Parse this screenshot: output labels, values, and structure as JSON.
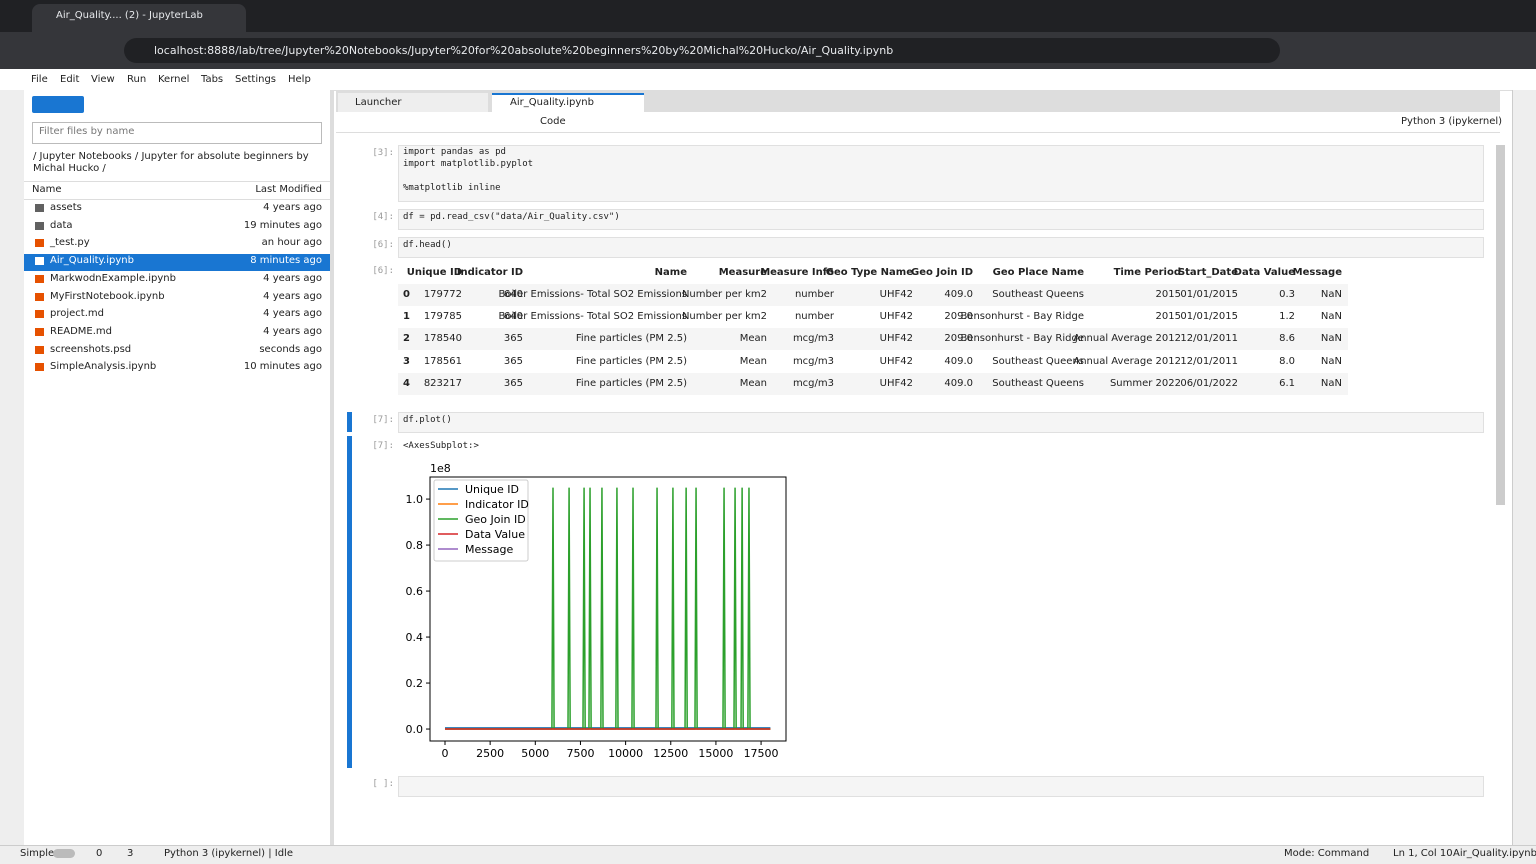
{
  "browser": {
    "tab_title": "Air_Quality.... (2) - JupyterLab",
    "url": "localhost:8888/lab/tree/Jupyter%20Notebooks/Jupyter%20for%20absolute%20beginners%20by%20Michal%20Hucko/Air_Quality.ipynb"
  },
  "menu": [
    "File",
    "Edit",
    "View",
    "Run",
    "Kernel",
    "Tabs",
    "Settings",
    "Help"
  ],
  "file_browser": {
    "filter_placeholder": "Filter files by name",
    "breadcrumb": "/ Jupyter Notebooks / Jupyter for absolute beginners by Michal Hucko /",
    "columns": [
      "Name",
      "Last Modified"
    ],
    "files": [
      {
        "name": "assets",
        "modified": "4 years ago"
      },
      {
        "name": "data",
        "modified": "19 minutes ago"
      },
      {
        "name": "_test.py",
        "modified": "an hour ago"
      },
      {
        "name": "Air_Quality.ipynb",
        "modified": "8 minutes ago"
      },
      {
        "name": "MarkwodnExample.ipynb",
        "modified": "4 years ago"
      },
      {
        "name": "MyFirstNotebook.ipynb",
        "modified": "4 years ago"
      },
      {
        "name": "project.md",
        "modified": "4 years ago"
      },
      {
        "name": "README.md",
        "modified": "4 years ago"
      },
      {
        "name": "screenshots.psd",
        "modified": "seconds ago"
      },
      {
        "name": "SimpleAnalysis.ipynb",
        "modified": "10 minutes ago"
      }
    ]
  },
  "tabs": [
    "Launcher",
    "Air_Quality.ipynb"
  ],
  "toolbar": {
    "cell_type": "Code",
    "kernel": "Python 3 (ipykernel)"
  },
  "cells": [
    {
      "prompt": "[3]:",
      "lines": [
        "import pandas as pd",
        "import matplotlib.pyplot",
        "%matplotlib inline"
      ]
    },
    {
      "prompt": "[4]:",
      "lines": [
        "df = pd.read_csv(\"data/Air_Quality.csv\")"
      ]
    },
    {
      "prompt": "[6]:",
      "lines": [
        "df.head()"
      ]
    },
    {
      "prompt": "[7]:",
      "lines": [
        "df.plot()"
      ]
    },
    {
      "prompt": "[ ]:",
      "lines": []
    }
  ],
  "outputs": {
    "table_prompt": "[6]:",
    "plot_prompt": "[7]:",
    "plot_text": "<AxesSubplot:>"
  },
  "table": {
    "columns": [
      "Unique ID",
      "Indicator ID",
      "Name",
      "Measure",
      "Measure Info",
      "Geo Type Name",
      "Geo Join ID",
      "Geo Place Name",
      "Time Period",
      "Start_Date",
      "Data Value",
      "Message"
    ],
    "rows": [
      [
        "0",
        "179772",
        "640",
        "Boiler Emissions- Total SO2 Emissions",
        "Number per km2",
        "number",
        "UHF42",
        "409.0",
        "Southeast Queens",
        "2015",
        "01/01/2015",
        "0.3",
        "NaN"
      ],
      [
        "1",
        "179785",
        "640",
        "Boiler Emissions- Total SO2 Emissions",
        "Number per km2",
        "number",
        "UHF42",
        "209.0",
        "Bensonhurst - Bay Ridge",
        "2015",
        "01/01/2015",
        "1.2",
        "NaN"
      ],
      [
        "2",
        "178540",
        "365",
        "Fine particles (PM 2.5)",
        "Mean",
        "mcg/m3",
        "UHF42",
        "209.0",
        "Bensonhurst - Bay Ridge",
        "Annual Average 2012",
        "12/01/2011",
        "8.6",
        "NaN"
      ],
      [
        "3",
        "178561",
        "365",
        "Fine particles (PM 2.5)",
        "Mean",
        "mcg/m3",
        "UHF42",
        "409.0",
        "Southeast Queens",
        "Annual Average 2012",
        "12/01/2011",
        "8.0",
        "NaN"
      ],
      [
        "4",
        "823217",
        "365",
        "Fine particles (PM 2.5)",
        "Mean",
        "mcg/m3",
        "UHF42",
        "409.0",
        "Southeast Queens",
        "Summer 2022",
        "06/01/2022",
        "6.1",
        "NaN"
      ]
    ]
  },
  "chart_data": {
    "type": "line",
    "y_offset_label": "1e8",
    "xlim": [
      -830,
      18880
    ],
    "ylim": [
      -0.052,
      1.096
    ],
    "xticks": [
      0,
      2500,
      5000,
      7500,
      10000,
      12500,
      15000,
      17500
    ],
    "yticks": [
      {
        "value": 0,
        "label": "0.0"
      },
      {
        "value": 0.2,
        "label": "0.2"
      },
      {
        "value": 0.4,
        "label": "0.4"
      },
      {
        "value": 0.6,
        "label": "0.6"
      },
      {
        "value": 0.8,
        "label": "0.8"
      },
      {
        "value": 1,
        "label": "1.0"
      }
    ],
    "legend": "upper left",
    "series": [
      {
        "name": "Unique ID",
        "color": "#1f77b4",
        "x": [
          0,
          18016
        ],
        "values": [
          0.005,
          0.005
        ]
      },
      {
        "name": "Indicator ID",
        "color": "#ff7f0e",
        "x": [
          0,
          18016
        ],
        "values": [
          0,
          0
        ]
      },
      {
        "name": "Geo Join ID",
        "color": "#2ca02c",
        "x": [
          0,
          5920,
          5980,
          6040,
          6810,
          6870,
          6930,
          7640,
          7700,
          7760,
          7970,
          8030,
          8090,
          8630,
          8690,
          8750,
          9460,
          9520,
          9580,
          10350,
          10410,
          10470,
          11680,
          11740,
          11800,
          12560,
          12620,
          12680,
          13290,
          13350,
          13410,
          13840,
          13900,
          13960,
          15390,
          15450,
          15510,
          16000,
          16060,
          16120,
          16390,
          16450,
          16510,
          16770,
          16830,
          16890,
          18016
        ],
        "values": [
          0,
          0,
          1.05,
          0,
          0,
          1.05,
          0,
          0,
          1.05,
          0,
          0,
          1.05,
          0,
          0,
          1.05,
          0,
          0,
          1.05,
          0,
          0,
          1.05,
          0,
          0,
          1.05,
          0,
          0,
          1.05,
          0,
          0,
          1.05,
          0,
          0,
          1.05,
          0,
          0,
          1.05,
          0,
          0,
          1.05,
          0,
          0,
          1.05,
          0,
          0,
          1.05,
          0,
          0
        ]
      },
      {
        "name": "Data Value",
        "color": "#d62728",
        "x": [
          0,
          18016
        ],
        "values": [
          0,
          0
        ]
      },
      {
        "name": "Message",
        "color": "#9467bd",
        "x": [
          0,
          18016
        ],
        "values": [
          null,
          null
        ]
      }
    ]
  },
  "status": {
    "mode_toggle": "Simple",
    "terminals": "0",
    "kernels": "3",
    "kernel_status": "Python 3 (ipykernel) | Idle",
    "mode": "Mode: Command",
    "cursor": "Ln 1, Col 10",
    "file": "Air_Quality.ipynb"
  }
}
